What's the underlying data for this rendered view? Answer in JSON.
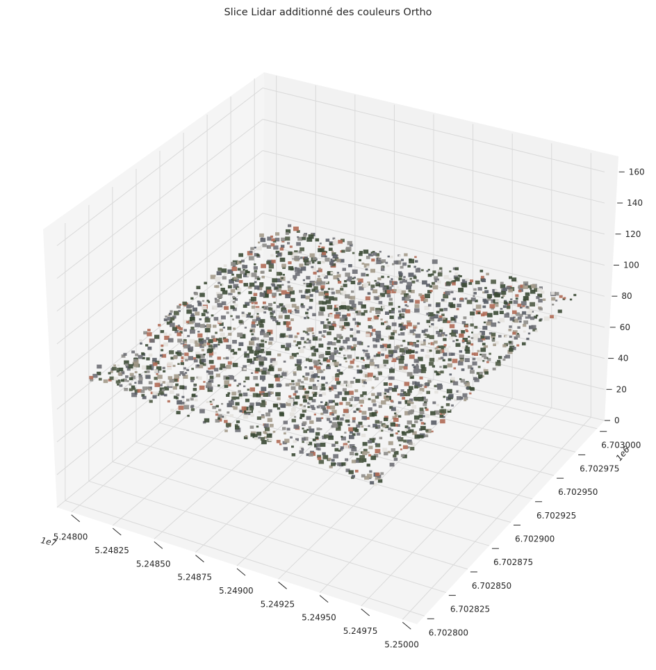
{
  "chart_data": {
    "type": "scatter",
    "projection": "3d",
    "title": "Slice Lidar additionné des couleurs Ortho",
    "xlabel": "",
    "ylabel": "",
    "zlabel": "",
    "x_ticks": [
      "5.24800",
      "5.24825",
      "5.24850",
      "5.24875",
      "5.24900",
      "5.24925",
      "5.24950",
      "5.24975",
      "5.25000"
    ],
    "x_offset": "1e7",
    "y_ticks": [
      "6.702800",
      "6.702825",
      "6.702850",
      "6.702875",
      "6.702900",
      "6.702925",
      "6.702950",
      "6.702975",
      "6.703000"
    ],
    "y_offset": "1e6",
    "z_ticks": [
      "0",
      "20",
      "40",
      "60",
      "80",
      "100",
      "120",
      "140",
      "160"
    ],
    "xlim": [
      52479900,
      52500200
    ],
    "ylim": [
      6702795,
      6703010
    ],
    "zlim": [
      0,
      170
    ],
    "grid": true,
    "legend": "none",
    "description_colors": {
      "pane_back": "#f2f2f2",
      "pane_side": "#f5f5f5",
      "pane_floor": "#f4f4f4",
      "grid": "#d9d9d9",
      "points_roof_gray": "#6e6f76",
      "points_tree": "#3b4a35",
      "points_road": "#8d8c88",
      "points_roof_red": "#b06a55",
      "points_white": "#e4e2de"
    }
  }
}
